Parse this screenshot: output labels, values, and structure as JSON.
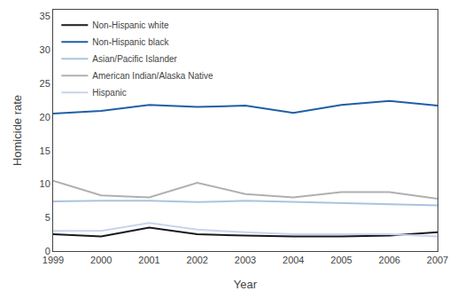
{
  "chart_data": {
    "type": "line",
    "x": [
      1999,
      2000,
      2001,
      2002,
      2003,
      2004,
      2005,
      2006,
      2007
    ],
    "series": [
      {
        "name": "Non-Hispanic white",
        "color": "#1a1a1a",
        "values": [
          2.5,
          2.2,
          3.5,
          2.5,
          2.3,
          2.2,
          2.2,
          2.3,
          2.8
        ]
      },
      {
        "name": "Non-Hispanic black",
        "color": "#1f5fa6",
        "values": [
          20.5,
          20.9,
          21.8,
          21.5,
          21.7,
          20.6,
          21.8,
          22.4,
          21.7
        ]
      },
      {
        "name": "Asian/Pacific Islander",
        "color": "#a8c4e0",
        "values": [
          7.4,
          7.5,
          7.5,
          7.3,
          7.5,
          7.3,
          7.2,
          7.0,
          6.8
        ]
      },
      {
        "name": "American Indian/Alaska Native",
        "color": "#b0b0b0",
        "values": [
          10.5,
          8.3,
          8.0,
          10.2,
          8.5,
          8.0,
          8.8,
          8.8,
          7.8
        ]
      },
      {
        "name": "Hispanic",
        "color": "#c8d4ec",
        "values": [
          3.0,
          3.0,
          4.2,
          3.2,
          2.8,
          2.5,
          2.5,
          2.5,
          2.2
        ]
      }
    ],
    "x_label": "Year",
    "y_label": "Homicide rate",
    "xlim": [
      1999,
      2007
    ],
    "xticks": [
      1999,
      2000,
      2001,
      2002,
      2003,
      2004,
      2005,
      2006,
      2007
    ],
    "ylim": [
      0,
      36
    ],
    "yticks": [
      0,
      5,
      10,
      15,
      20,
      25,
      30,
      35
    ],
    "legend": "upper left",
    "grid": false
  }
}
